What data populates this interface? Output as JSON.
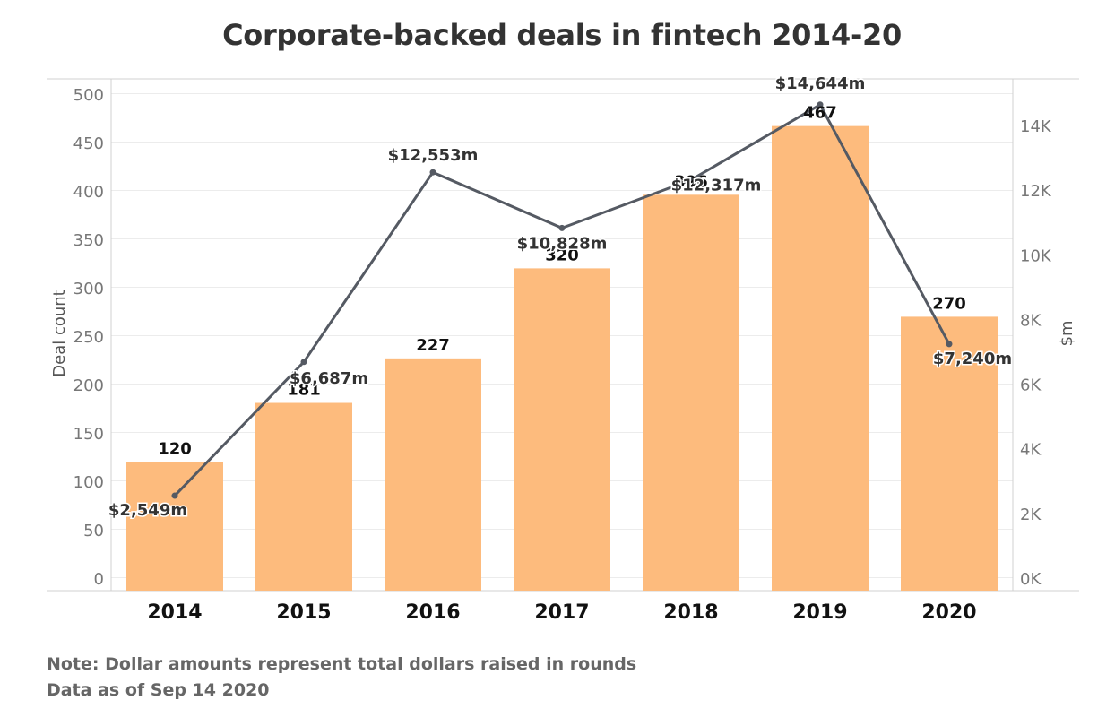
{
  "chart_data": {
    "type": "bar",
    "title": "Corporate-backed deals in fintech 2014-20",
    "categories": [
      "2014",
      "2015",
      "2016",
      "2017",
      "2018",
      "2019",
      "2020"
    ],
    "series": [
      {
        "type": "bar",
        "axis": "left",
        "values": [
          120,
          181,
          227,
          320,
          396,
          467,
          270
        ],
        "labels": [
          "120",
          "181",
          "227",
          "320",
          "396",
          "467",
          "270"
        ],
        "color": "#FDBB7D"
      },
      {
        "type": "line",
        "axis": "right",
        "values": [
          2549,
          6687,
          12553,
          10828,
          12317,
          14644,
          7240
        ],
        "labels": [
          "$2,549m",
          "$6,687m",
          "$12,553m",
          "$10,828m",
          "$12,317m",
          "$14,644m",
          "$7,240m"
        ],
        "color": "#555A63"
      }
    ],
    "ylabel_left": "Deal count",
    "ylabel_right": "$m",
    "ylim_left": [
      0,
      500
    ],
    "ylim_right": [
      0,
      14644
    ],
    "yticks_left": [
      "500",
      "450",
      "400",
      "350",
      "300",
      "250",
      "200",
      "150",
      "100",
      "50",
      "0"
    ],
    "yticks_right": [
      "14K",
      "12K",
      "10K",
      "8K",
      "6K",
      "4K",
      "2K",
      "0K"
    ],
    "grid": true,
    "legend": "none"
  },
  "notes": {
    "note": "Note: Dollar amounts represent total dollars raised in rounds",
    "data_as_of": "Data as of Sep 14 2020"
  }
}
